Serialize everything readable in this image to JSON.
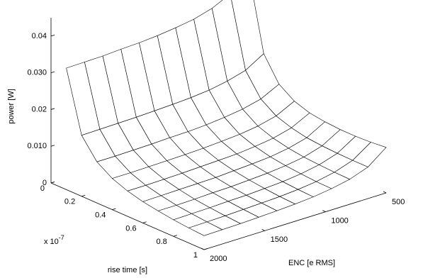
{
  "chart_data": {
    "type": "surface",
    "xlabel": "rise time [s]",
    "ylabel": "ENC [e RMS]",
    "zlabel": "power [W]",
    "x_multiplier": "x 10",
    "x_multiplier_exponent": "-7",
    "x": [
      0.1,
      0.2,
      0.3,
      0.4,
      0.5,
      0.6,
      0.7,
      0.8,
      0.9,
      1.0
    ],
    "y": [
      500,
      650,
      800,
      950,
      1100,
      1250,
      1400,
      1550,
      1700,
      1850,
      2000
    ],
    "values": [
      [
        0.0443,
        0.0394,
        0.037,
        0.0356,
        0.0348,
        0.0342,
        0.0338,
        0.0336,
        0.0333,
        0.0332,
        0.0331
      ],
      [
        0.0234,
        0.0204,
        0.019,
        0.0181,
        0.0176,
        0.0173,
        0.0171,
        0.0169,
        0.0168,
        0.0167,
        0.0166
      ],
      [
        0.0169,
        0.0144,
        0.0132,
        0.0125,
        0.012,
        0.0117,
        0.0116,
        0.0114,
        0.0113,
        0.0112,
        0.0112
      ],
      [
        0.0141,
        0.0116,
        0.0104,
        0.0097,
        0.0093,
        0.009,
        0.0088,
        0.0087,
        0.0086,
        0.0085,
        0.0085
      ],
      [
        0.0127,
        0.0102,
        0.0089,
        0.0082,
        0.0077,
        0.0075,
        0.0073,
        0.0071,
        0.007,
        0.0069,
        0.0069
      ],
      [
        0.0121,
        0.0093,
        0.008,
        0.0072,
        0.0068,
        0.0065,
        0.0062,
        0.0061,
        0.006,
        0.0059,
        0.0058
      ],
      [
        0.0118,
        0.0089,
        0.0074,
        0.0066,
        0.0061,
        0.0058,
        0.0055,
        0.0054,
        0.0052,
        0.0051,
        0.0051
      ],
      [
        0.0118,
        0.0087,
        0.0071,
        0.0062,
        0.0056,
        0.0053,
        0.005,
        0.0049,
        0.0047,
        0.0046,
        0.0045
      ],
      [
        0.012,
        0.0086,
        0.0069,
        0.0059,
        0.0053,
        0.0049,
        0.0047,
        0.0045,
        0.0043,
        0.0042,
        0.0041
      ],
      [
        0.0124,
        0.0086,
        0.0068,
        0.0058,
        0.0051,
        0.0047,
        0.0044,
        0.0042,
        0.004,
        0.0039,
        0.0038
      ]
    ],
    "xlim": [
      0,
      1
    ],
    "xticks": [
      0,
      0.2,
      0.4,
      0.6,
      0.8,
      1
    ],
    "ylim": [
      500,
      2000
    ],
    "yticks": [
      500,
      1000,
      1500,
      2000
    ],
    "zlim": [
      0,
      0.045
    ],
    "zticks": [
      0,
      {
        "value": 0.01,
        "label": "0.010"
      },
      0.02,
      {
        "value": 0.03,
        "label": "0.030"
      },
      0.04
    ],
    "color": "#000000",
    "face_color": "#ffffff"
  }
}
